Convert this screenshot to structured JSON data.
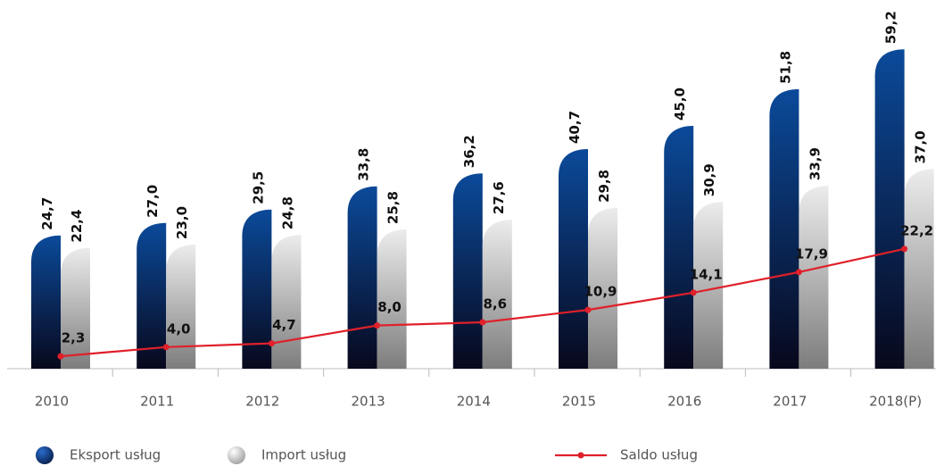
{
  "chart_data": {
    "type": "bar-line",
    "categories": [
      "2010",
      "2011",
      "2012",
      "2013",
      "2014",
      "2015",
      "2016",
      "2017",
      "2018(P)"
    ],
    "series": [
      {
        "name": "Eksport usług",
        "type": "bar",
        "color": "#0b4a9a",
        "values": [
          24.7,
          27.0,
          29.5,
          33.8,
          36.2,
          40.7,
          45.0,
          51.8,
          59.2
        ],
        "value_labels": [
          "24,7",
          "27,0",
          "29,5",
          "33,8",
          "36,2",
          "40,7",
          "45,0",
          "51,8",
          "59,2"
        ]
      },
      {
        "name": "Import usług",
        "type": "bar",
        "color": "#d9d9d9",
        "values": [
          22.4,
          23.0,
          24.8,
          25.8,
          27.6,
          29.8,
          30.9,
          33.9,
          37.0
        ],
        "value_labels": [
          "22,4",
          "23,0",
          "24,8",
          "25,8",
          "27,6",
          "29,8",
          "30,9",
          "33,9",
          "37,0"
        ]
      },
      {
        "name": "Saldo usług",
        "type": "line",
        "color": "#e0202a",
        "values": [
          2.3,
          4.0,
          4.7,
          8.0,
          8.6,
          10.9,
          14.1,
          17.9,
          22.2
        ],
        "value_labels": [
          "2,3",
          "4,0",
          "4,7",
          "8,0",
          "8,6",
          "10,9",
          "14,1",
          "17,9",
          "22,2"
        ]
      }
    ],
    "ylim": [
      0,
      68
    ],
    "legend": "bottom"
  }
}
